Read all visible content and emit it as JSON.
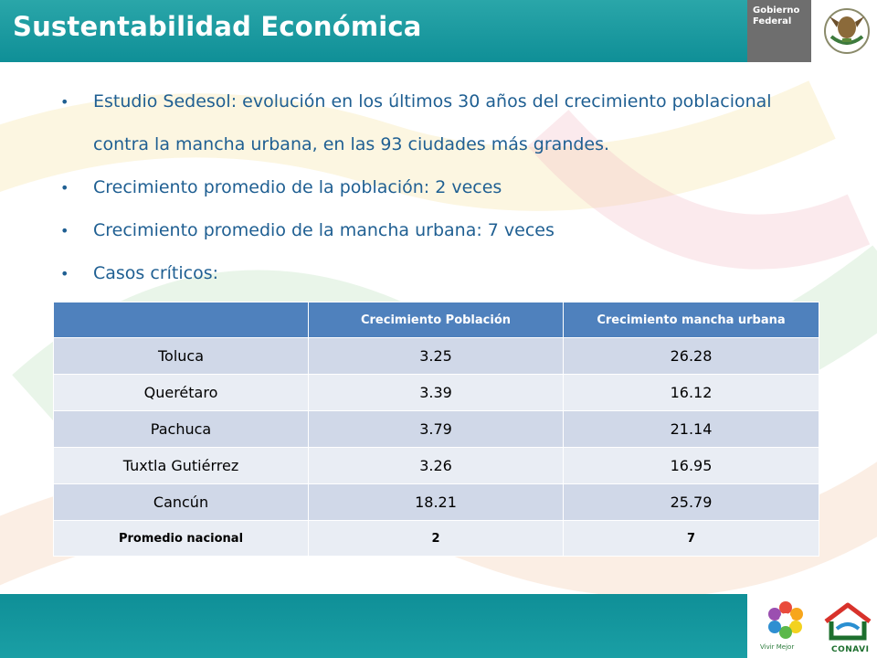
{
  "header": {
    "title": "Sustentabilidad Económica"
  },
  "gov_logo": {
    "line1": "Gobierno",
    "line2": "Federal"
  },
  "bullets": [
    "Estudio Sedesol: evolución en los últimos 30 años del crecimiento poblacional contra la mancha urbana, en las 93 ciudades más grandes.",
    "Crecimiento promedio de la población: 2 veces",
    "Crecimiento promedio de la mancha urbana: 7 veces",
    "Casos críticos:"
  ],
  "table": {
    "headers": [
      "",
      "Crecimiento Población",
      "Crecimiento mancha urbana"
    ],
    "rows": [
      [
        "Toluca",
        "3.25",
        "26.28"
      ],
      [
        "Querétaro",
        "3.39",
        "16.12"
      ],
      [
        "Pachuca",
        "3.79",
        "21.14"
      ],
      [
        "Tuxtla Gutiérrez",
        "3.26",
        "16.95"
      ],
      [
        "Cancún",
        "18.21",
        "25.79"
      ]
    ],
    "total": [
      "Promedio nacional",
      "2",
      "7"
    ]
  },
  "footer": {
    "vivir_label": "Vivir Mejor",
    "conavi_label": "CONAVI"
  },
  "colors": {
    "header": "#0f8f97",
    "bullet_text": "#1f5f92",
    "table_header": "#4f81bd",
    "row_dark": "#d0d8e8",
    "row_light": "#e9edf4"
  }
}
